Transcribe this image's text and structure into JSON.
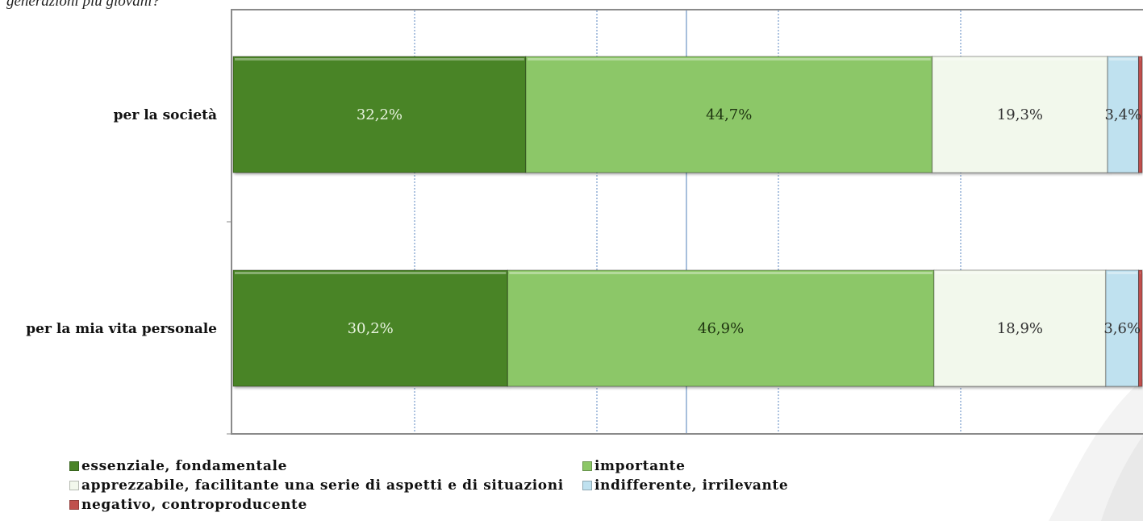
{
  "question": "generazioni più giovani?",
  "colors": {
    "essenziale": "#4a8427",
    "importante": "#8cc767",
    "apprezzabile": "#f2f8ec",
    "indifferente": "#bfe1ef",
    "negativo": "#c0504d"
  },
  "chart_data": {
    "type": "bar",
    "orientation": "horizontal",
    "stacked": true,
    "categories": [
      "per la società",
      "per la mia vita personale"
    ],
    "xlim": [
      0,
      100
    ],
    "series": [
      {
        "name": "essenziale, fondamentale",
        "color": "#4a8427",
        "values": [
          32.2,
          30.2
        ],
        "labels": [
          "32,2%",
          "30,2%"
        ],
        "label_color": "#e8f3df"
      },
      {
        "name": "importante",
        "color": "#8cc767",
        "values": [
          44.7,
          46.9
        ],
        "labels": [
          "44,7%",
          "46,9%"
        ],
        "label_color": "#1e3410"
      },
      {
        "name": "apprezzabile, facilitante una serie di aspetti e di situazioni",
        "color": "#f2f8ec",
        "values": [
          19.3,
          18.9
        ],
        "labels": [
          "19,3%",
          "18,9%"
        ],
        "label_color": "#333333"
      },
      {
        "name": "indifferente, irrilevante",
        "color": "#bfe1ef",
        "values": [
          3.4,
          3.6
        ],
        "labels": [
          "3,4%",
          "3,6%"
        ],
        "label_color": "#333333"
      },
      {
        "name": "negativo, controproducente",
        "color": "#c0504d",
        "values": [
          0.4,
          0.4
        ],
        "labels": [
          "",
          ""
        ],
        "label_color": "#333333"
      }
    ],
    "grid": true,
    "legend_position": "bottom"
  }
}
